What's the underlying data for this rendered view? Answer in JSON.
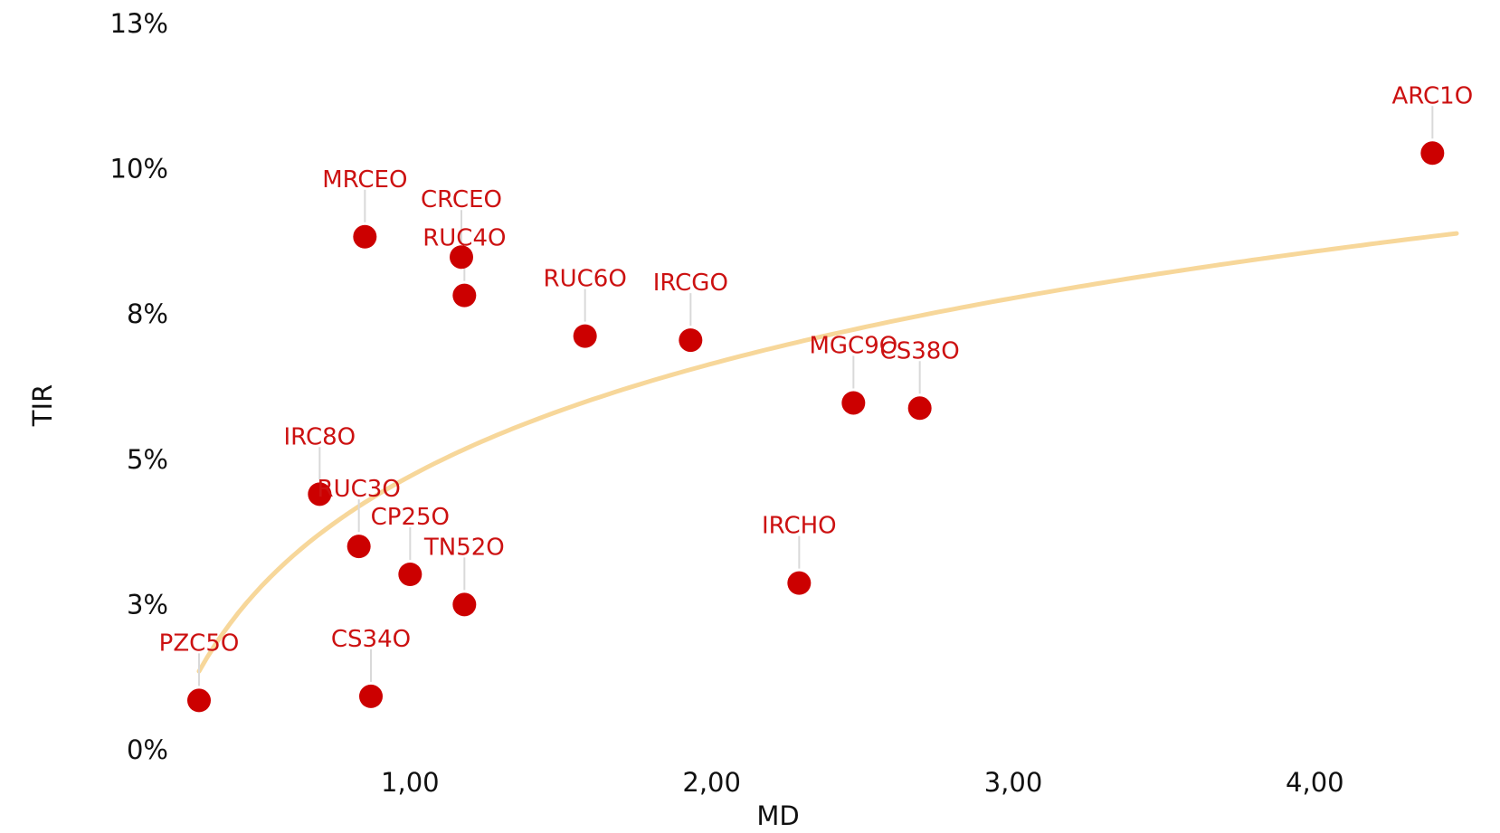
{
  "chart_data": {
    "type": "scatter",
    "xlabel": "MD",
    "ylabel": "TIR",
    "xlim": [
      0.24,
      4.47
    ],
    "ylim": [
      0,
      12.5
    ],
    "x_ticks": [
      {
        "value": 1,
        "label": "1,00"
      },
      {
        "value": 2,
        "label": "2,00"
      },
      {
        "value": 3,
        "label": "3,00"
      },
      {
        "value": 4,
        "label": "4,00"
      }
    ],
    "y_ticks": [
      {
        "value": 0,
        "label": "0%"
      },
      {
        "value": 2.5,
        "label": "3%"
      },
      {
        "value": 5,
        "label": "5%"
      },
      {
        "value": 7.5,
        "label": "8%"
      },
      {
        "value": 10,
        "label": "10%"
      },
      {
        "value": 12.5,
        "label": "13%"
      }
    ],
    "grid": false,
    "legend": "none",
    "colors": {
      "points": "#cc0000",
      "labels": "#cc1111",
      "trend": "#f7d79a",
      "leader": "#d9d9d9"
    },
    "trendline": {
      "type": "logarithmic",
      "a": 4.71,
      "b": 2.79,
      "x_from": 0.3,
      "x_to": 4.47
    },
    "points": [
      {
        "label": "PZC5O",
        "x": 0.3,
        "y": 0.85
      },
      {
        "label": "IRC8O",
        "x": 0.7,
        "y": 4.4
      },
      {
        "label": "RUC3O",
        "x": 0.83,
        "y": 3.5
      },
      {
        "label": "CS34O",
        "x": 0.87,
        "y": 0.92
      },
      {
        "label": "MRCEO",
        "x": 0.85,
        "y": 8.83
      },
      {
        "label": "CP25O",
        "x": 1.0,
        "y": 3.02
      },
      {
        "label": "CRCEO",
        "x": 1.17,
        "y": 8.48
      },
      {
        "label": "RUC4O",
        "x": 1.18,
        "y": 7.82
      },
      {
        "label": "TN52O",
        "x": 1.18,
        "y": 2.5
      },
      {
        "label": "RUC6O",
        "x": 1.58,
        "y": 7.12
      },
      {
        "label": "IRCGO",
        "x": 1.93,
        "y": 7.05
      },
      {
        "label": "IRCHO",
        "x": 2.29,
        "y": 2.87
      },
      {
        "label": "MGC9O",
        "x": 2.47,
        "y": 5.97
      },
      {
        "label": "CS38O",
        "x": 2.69,
        "y": 5.88
      },
      {
        "label": "ARC1O",
        "x": 4.39,
        "y": 10.27
      }
    ]
  }
}
